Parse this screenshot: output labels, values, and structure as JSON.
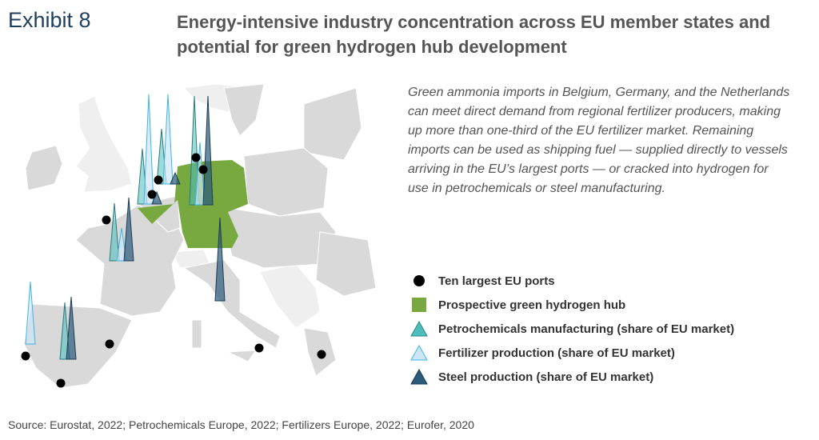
{
  "exhibit_label": "Exhibit 8",
  "title": "Energy-intensive industry concentration across EU member states and potential for green hydrogen hub development",
  "description": "Green ammonia imports in Belgium, Germany, and the Netherlands can meet direct demand from regional fertilizer producers, making up more than one-third of the EU fertilizer market. Remaining imports can be used as shipping fuel — supplied directly to vessels arriving in the EU’s largest ports — or cracked into hydrogen for use in petrochemicals or steel manufacturing.",
  "legend": [
    {
      "label": "Ten largest EU ports",
      "icon": "port-dot",
      "color": "#000000"
    },
    {
      "label": "Prospective green hydrogen hub",
      "icon": "hub-square",
      "color": "#78a940"
    },
    {
      "label": "Petrochemicals manufacturing (share of EU market)",
      "icon": "triangle",
      "color": "#4dbdbb"
    },
    {
      "label": "Fertilizer production (share of EU market)",
      "icon": "triangle",
      "color": "#cde6f5"
    },
    {
      "label": "Steel production (share of EU market)",
      "icon": "triangle",
      "color": "#2b5a7a"
    }
  ],
  "colors": {
    "land": "#d9d9d9",
    "non_eu": "#efefef",
    "hub": "#78a940",
    "petro": "#4dbdbb",
    "fert": "#cde6f5",
    "steel": "#2b5a7a"
  },
  "hub_countries": [
    "Belgium",
    "Germany",
    "Netherlands"
  ],
  "source": "Source: Eurostat, 2022; Petrochemicals Europe, 2022; Fertilizers Europe, 2022; Eurofer, 2020"
}
